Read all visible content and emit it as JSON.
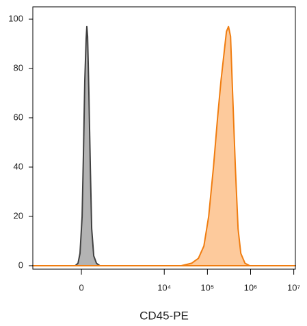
{
  "chart_data": {
    "type": "area",
    "x_label": "CD45-PE",
    "xscale": "biexponential",
    "xlim": [
      -1600,
      10900000
    ],
    "ylim": [
      -1.4,
      105
    ],
    "xticks": [
      0,
      {
        "value": 10000,
        "label": "10⁴"
      },
      {
        "value": 100000,
        "label": "10⁵"
      },
      {
        "value": 1000000,
        "label": "10⁶"
      },
      {
        "value": 10000000,
        "label": "10⁷"
      }
    ],
    "yticks": [
      0,
      20,
      40,
      60,
      80,
      100
    ],
    "series": [
      {
        "color": "#404040",
        "fill": "#b3b3b3",
        "x": [
          -1600,
          -81,
          -44,
          -18,
          9,
          26,
          44,
          62,
          71,
          81,
          99,
          119,
          139,
          170,
          215,
          278,
          10900000
        ],
        "values": [
          0,
          0,
          1,
          5,
          20,
          45,
          75,
          92,
          97,
          93,
          70,
          40,
          15,
          4,
          1,
          0,
          0
        ]
      },
      {
        "color": "#f07d10",
        "fill": "#fdca9c",
        "x": [
          -1600,
          24800,
          42900,
          61800,
          82800,
          106900,
          138200,
          172000,
          206400,
          238800,
          276200,
          308300,
          344000,
          383900,
          444200,
          513900,
          594500,
          740200,
          955100,
          10900000
        ],
        "values": [
          0,
          0,
          1,
          3,
          8,
          20,
          40,
          60,
          75,
          85,
          95,
          97,
          93,
          70,
          40,
          15,
          5,
          1,
          0,
          0
        ]
      }
    ]
  }
}
